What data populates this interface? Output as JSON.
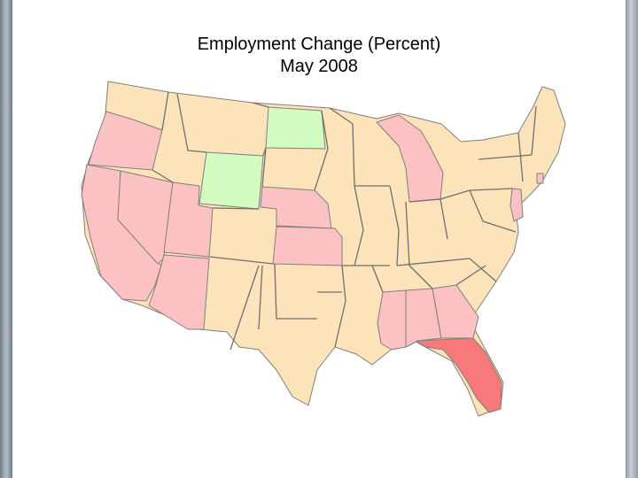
{
  "title": {
    "line1": "Employment Change (Percent)",
    "line2": "May 2008"
  },
  "colors": {
    "neutral": "#fde3b9",
    "gain": "#d2fcc0",
    "light_loss": "#fcc1c2",
    "heavy_loss": "#f7797a",
    "border": "#7f7f7f"
  },
  "map_data": {
    "type": "choropleth",
    "region": "United States (contiguous)",
    "states_gain": [
      "North Dakota",
      "Wyoming"
    ],
    "states_light_loss": [
      "Oregon",
      "California",
      "Nevada",
      "Utah",
      "Arizona",
      "Nebraska",
      "Kansas",
      "Michigan",
      "Mississippi",
      "Alabama",
      "Georgia",
      "New Jersey",
      "Rhode Island"
    ],
    "states_heavy_loss": [
      "Florida"
    ],
    "states_neutral": "all other states"
  }
}
